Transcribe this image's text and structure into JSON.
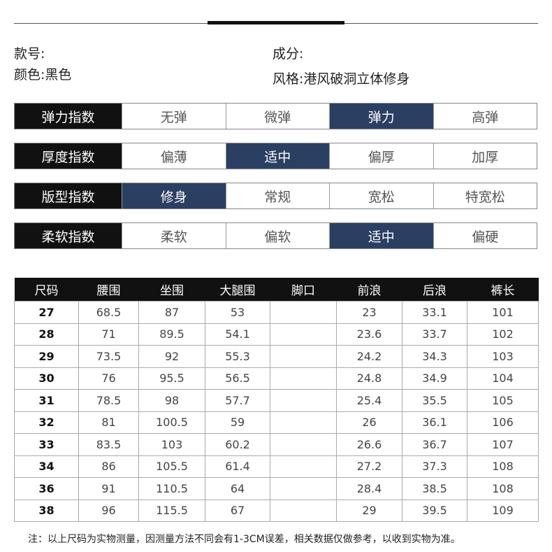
{
  "info": {
    "style_no_label": "款号:",
    "color_label": "颜色:",
    "color_value": "黑色",
    "material_label": "成分:",
    "style_label": "风格:",
    "style_value": "港风破洞立体修身"
  },
  "indices": [
    {
      "label": "弹力指数",
      "options": [
        "无弹",
        "微弹",
        "弹力",
        "高弹"
      ],
      "selected": 2
    },
    {
      "label": "厚度指数",
      "options": [
        "偏薄",
        "适中",
        "偏厚",
        "加厚"
      ],
      "selected": 1
    },
    {
      "label": "版型指数",
      "options": [
        "修身",
        "常规",
        "宽松",
        "特宽松"
      ],
      "selected": 0
    },
    {
      "label": "柔软指数",
      "options": [
        "柔软",
        "偏软",
        "适中",
        "偏硬"
      ],
      "selected": 2
    }
  ],
  "size_table": {
    "headers": [
      "尺码",
      "腰围",
      "坐围",
      "大腿围",
      "脚口",
      "前浪",
      "后浪",
      "裤长"
    ],
    "rows": [
      [
        "27",
        "68.5",
        "87",
        "53",
        "",
        "23",
        "33.1",
        "101"
      ],
      [
        "28",
        "71",
        "89.5",
        "54.1",
        "",
        "23.6",
        "33.7",
        "102"
      ],
      [
        "29",
        "73.5",
        "92",
        "55.3",
        "",
        "24.2",
        "34.3",
        "103"
      ],
      [
        "30",
        "76",
        "95.5",
        "56.5",
        "",
        "24.8",
        "34.9",
        "104"
      ],
      [
        "31",
        "78.5",
        "98",
        "57.7",
        "",
        "25.4",
        "35.5",
        "105"
      ],
      [
        "32",
        "81",
        "100.5",
        "59",
        "",
        "26",
        "36.1",
        "106"
      ],
      [
        "33",
        "83.5",
        "103",
        "60.2",
        "",
        "26.6",
        "36.7",
        "107"
      ],
      [
        "34",
        "86",
        "105.5",
        "61.4",
        "",
        "27.2",
        "37.3",
        "108"
      ],
      [
        "36",
        "91",
        "110.5",
        "64",
        "",
        "28.4",
        "38.5",
        "108"
      ],
      [
        "38",
        "96",
        "115.5",
        "67",
        "",
        "29",
        "39.5",
        "109"
      ]
    ]
  },
  "note": "注：以上尺码为实物测量，因测量方法不同会有1-3CM误差，相关数据仅做参考，以收到实物为准。",
  "colors": {
    "selected": "#2b3f63",
    "label_bg": "#111111"
  }
}
